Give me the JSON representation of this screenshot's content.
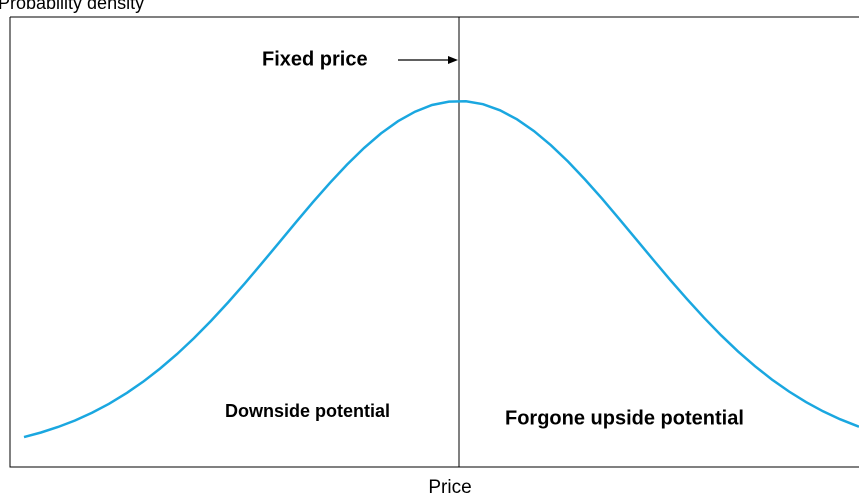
{
  "y_axis_label": "Probability density",
  "x_axis_label": "Price",
  "annotations": {
    "fixed_price": "Fixed price",
    "left_area": "Downside potential",
    "right_area": "Forgone upside potential"
  }
}
